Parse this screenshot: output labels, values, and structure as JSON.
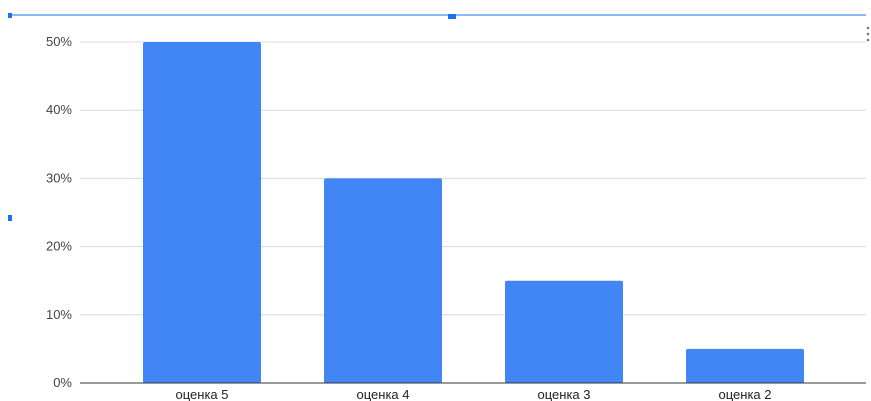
{
  "colors": {
    "bar": "#4285F4",
    "grid": "#d9d9d9",
    "axis": "#333333",
    "selection": "#1a73e8"
  },
  "icons": {
    "menu": "more-vert-icon"
  },
  "chart_data": {
    "type": "bar",
    "categories": [
      "оценка 5",
      "оценка 4",
      "оценка 3",
      "оценка 2"
    ],
    "values": [
      50,
      30,
      15,
      5
    ],
    "yticks": [
      "0%",
      "10%",
      "20%",
      "30%",
      "40%",
      "50%"
    ],
    "ylim": [
      0,
      50
    ],
    "grid": true,
    "title": "",
    "xlabel": "",
    "ylabel": ""
  }
}
